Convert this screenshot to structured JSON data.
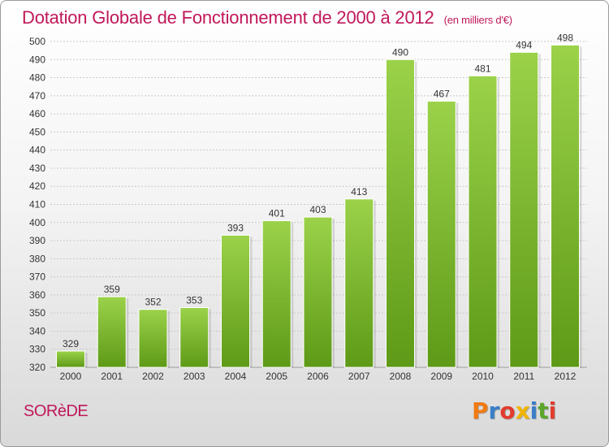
{
  "header": {
    "title": "Dotation Globale de Fonctionnement de 2000 à 2012",
    "subtitle": "(en milliers d'€)"
  },
  "footer": {
    "commune": "SORèDE",
    "brand": "Proxiti",
    "brand_colors": [
      "#f07b12",
      "#3a7ec7",
      "#e23b2e",
      "#f0b400",
      "#3a7ec7",
      "#5aa52b",
      "#e23b2e"
    ]
  },
  "colors": {
    "title": "#c0185a",
    "bar_top": "#9bd24a",
    "bar_bottom": "#5e9a17",
    "grid": "#c8c8c8"
  },
  "chart_data": {
    "type": "bar",
    "categories": [
      "2000",
      "2001",
      "2002",
      "2003",
      "2004",
      "2005",
      "2006",
      "2007",
      "2008",
      "2009",
      "2010",
      "2011",
      "2012"
    ],
    "values": [
      329,
      359,
      352,
      353,
      393,
      401,
      403,
      413,
      490,
      467,
      481,
      494,
      498
    ],
    "ylim": [
      320,
      500
    ],
    "yticks": [
      320,
      330,
      340,
      350,
      360,
      370,
      380,
      390,
      400,
      410,
      420,
      430,
      440,
      450,
      460,
      470,
      480,
      490,
      500
    ],
    "xlabel": "",
    "ylabel": "",
    "grid": true,
    "data_labels": true
  }
}
